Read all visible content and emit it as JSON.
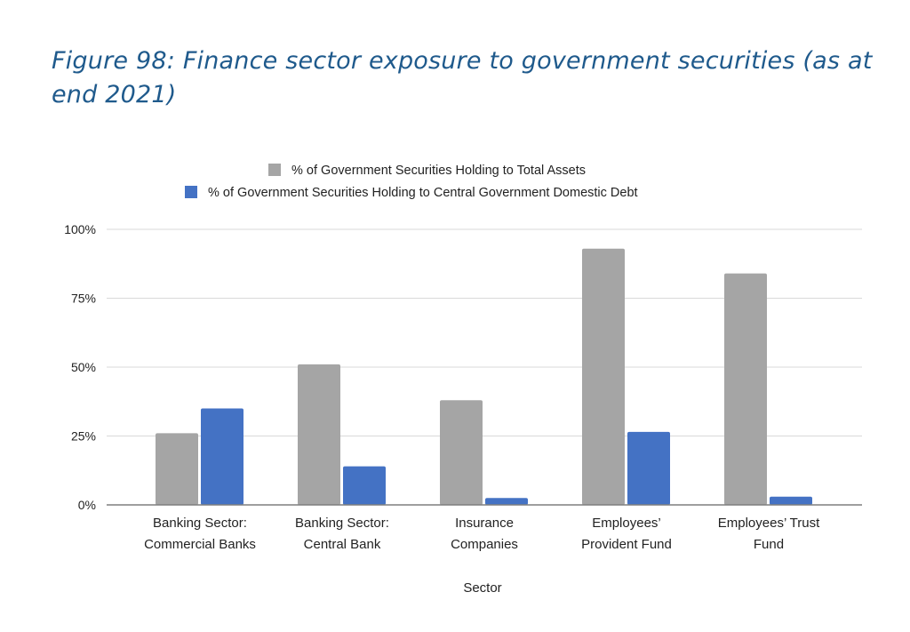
{
  "figure": {
    "title": "Figure 98: Finance sector exposure to government securities (as at end 2021)"
  },
  "colors": {
    "title": "#1f5a8c",
    "series_gray": "#a5a5a5",
    "series_blue": "#4472c4",
    "grid": "#d9d9d9",
    "axis": "#7f7f7f"
  },
  "chart_data": {
    "type": "bar",
    "title": "",
    "xlabel": "Sector",
    "ylabel": "",
    "ylim": [
      0,
      100
    ],
    "y_ticks": [
      0,
      25,
      50,
      75,
      100
    ],
    "y_tick_labels": [
      "0%",
      "25%",
      "50%",
      "75%",
      "100%"
    ],
    "grid": true,
    "legend_position": "top",
    "categories": [
      [
        "Banking Sector:",
        "Commercial Banks"
      ],
      [
        "Banking Sector:",
        "Central Bank"
      ],
      [
        "Insurance",
        "Companies"
      ],
      [
        "Employees’",
        "Provident Fund"
      ],
      [
        "Employees’ Trust",
        "Fund"
      ]
    ],
    "series": [
      {
        "name": "% of Government Securities Holding to Total Assets",
        "color": "#a5a5a5",
        "values": [
          26,
          51,
          38,
          93,
          84
        ]
      },
      {
        "name": "% of Government Securities Holding to Central Government Domestic Debt",
        "color": "#4472c4",
        "values": [
          35,
          14,
          2.5,
          26.5,
          3
        ]
      }
    ]
  }
}
